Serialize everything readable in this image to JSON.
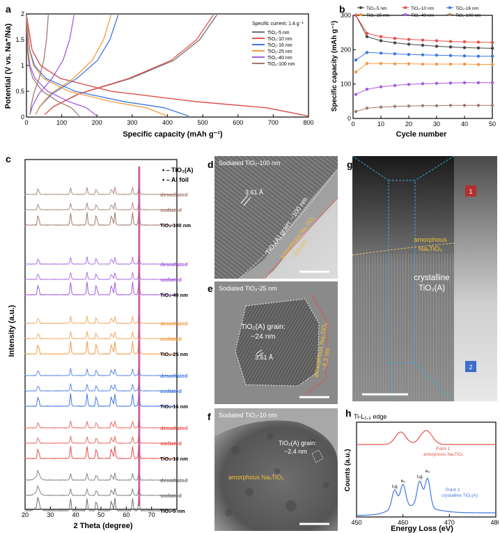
{
  "panel_a": {
    "label": "a",
    "legend_title": "Specific current: 1 A g⁻¹",
    "legend": [
      "TiO₂-5 nm",
      "TiO₂-10 nm",
      "TiO₂-16 nm",
      "TiO₂-25 nm",
      "TiO₂-40 nm",
      "TiO₂-100 nm"
    ],
    "colors": [
      "#6e6e6e",
      "#e8504b",
      "#3f76e4",
      "#f29a3f",
      "#a25be0",
      "#a07a70"
    ]
  },
  "panel_b": {
    "label": "b",
    "legend": [
      "TiO₂-5 nm",
      "TiO₂-10 nm",
      "TiO₂-16 nm",
      "TiO₂-25 nm",
      "TiO₂-40 nm",
      "TiO₂-100 nm"
    ]
  },
  "panel_c": {
    "label": "c",
    "legend": [
      "• – TiO₂(A)",
      "• – Al foil"
    ],
    "group_labels": [
      [
        "desodiated",
        "sodiated",
        "TiO₂-100 nm"
      ],
      [
        "desodiated",
        "sodiated",
        "TiO₂-40 nm"
      ],
      [
        "desodiated",
        "sodiated",
        "TiO₂-25 nm"
      ],
      [
        "desodiated",
        "sodiated",
        "TiO₂-16 nm"
      ],
      [
        "desodiated",
        "sodiated",
        "TiO₂-10 nm"
      ],
      [
        "desodiated",
        "sodiated",
        "TiO₂-5 nm"
      ]
    ]
  },
  "panel_d": {
    "label": "d",
    "title": "Sodiated TiO₂-100 nm",
    "spacing": "3.61 Å",
    "grain": "TiO₂(A) grain: ~100 nm",
    "amorphous": "amorphous NaₓTiO₂",
    "amorphous_size": "~3.0 nm"
  },
  "panel_e": {
    "label": "e",
    "title": "Sodiated TiO₂-25 nm",
    "grain_line1": "TiO₂(A) grain:",
    "grain_line2": "~24 nm",
    "spacing": "3.61 Å",
    "amorphous": "amorphous NaₓTiO₂",
    "amorphous_size": "~4.3 nm"
  },
  "panel_f": {
    "label": "f",
    "title": "Sodiated TiO₂-10 nm",
    "grain_line1": "TiO₂(A) grain:",
    "grain_line2": "~2.4 nm",
    "amorphous": "amorphous NaₓTiO₂"
  },
  "panel_g": {
    "label": "g",
    "amorphous_line1": "amorphous",
    "amorphous_line2": "NaₓTiO₂",
    "crystalline_line1": "crystalline",
    "crystalline_line2": "TiO₂(A)",
    "point1": "1",
    "point2": "2"
  },
  "panel_h": {
    "label": "h",
    "edge": "Ti-L₂,₃ edge",
    "point1_line1": "Point 1",
    "point1_line2": "amorphous NaₓTiO₂",
    "point2_line1": "Point 2",
    "point2_line2": "crystalline TiO₂(A)"
  },
  "chart_data": [
    {
      "type": "line",
      "panel": "a",
      "xlabel": "Specific capacity (mAh g⁻¹)",
      "ylabel": "Potential (V vs. Na⁺/Na)",
      "xlim": [
        0,
        800
      ],
      "ylim": [
        0,
        2
      ],
      "xticks": [
        0,
        100,
        200,
        300,
        400,
        500,
        600,
        700,
        800
      ],
      "yticks": [
        0,
        0.5,
        1,
        1.5,
        2
      ],
      "series": [
        {
          "name": "TiO₂-5 nm",
          "color": "#6e6e6e",
          "discharge_end": 800,
          "charge_end": 540
        },
        {
          "name": "TiO₂-10 nm",
          "color": "#e8504b",
          "discharge_end": 800,
          "charge_end": 530
        },
        {
          "name": "TiO₂-16 nm",
          "color": "#3f76e4",
          "discharge_end": 460,
          "charge_end": 260
        },
        {
          "name": "TiO₂-25 nm",
          "color": "#f29a3f",
          "discharge_end": 400,
          "charge_end": 240
        },
        {
          "name": "TiO₂-40 nm",
          "color": "#a25be0",
          "discharge_end": 200,
          "charge_end": 135
        },
        {
          "name": "TiO₂-100 nm",
          "color": "#a07a70",
          "discharge_end": 150,
          "charge_end": 62
        }
      ]
    },
    {
      "type": "scatter",
      "panel": "b",
      "xlabel": "Cycle number",
      "ylabel": "Specific capacity (mAh g⁻¹)",
      "xlim": [
        0,
        50
      ],
      "ylim": [
        0,
        300
      ],
      "xticks": [
        0,
        10,
        20,
        30,
        40,
        50
      ],
      "yticks": [
        0,
        100,
        200,
        300
      ],
      "x": [
        1,
        5,
        10,
        15,
        20,
        25,
        30,
        35,
        40,
        45,
        50
      ],
      "series": [
        {
          "name": "TiO₂-5 nm",
          "color": "#444444",
          "values": [
            300,
            238,
            226,
            220,
            216,
            213,
            210,
            208,
            206,
            205,
            204
          ]
        },
        {
          "name": "TiO₂-10 nm",
          "color": "#e8504b",
          "values": [
            300,
            248,
            238,
            233,
            230,
            228,
            226,
            224,
            223,
            222,
            221
          ]
        },
        {
          "name": "TiO₂-16 nm",
          "color": "#3f76e4",
          "values": [
            170,
            192,
            190,
            188,
            186,
            185,
            184,
            183,
            182,
            181,
            181
          ]
        },
        {
          "name": "TiO₂-25 nm",
          "color": "#f29a3f",
          "values": [
            135,
            160,
            160,
            159,
            159,
            158,
            158,
            158,
            158,
            157,
            157
          ]
        },
        {
          "name": "TiO₂-40 nm",
          "color": "#a25be0",
          "values": [
            70,
            85,
            92,
            96,
            99,
            101,
            102,
            103,
            104,
            104,
            104
          ]
        },
        {
          "name": "TiO₂-100 nm",
          "color": "#a07a70",
          "values": [
            20,
            30,
            33,
            35,
            36,
            37,
            37,
            38,
            38,
            38,
            38
          ]
        }
      ]
    },
    {
      "type": "line",
      "panel": "c",
      "xlabel": "2 Theta (degree)",
      "ylabel": "Intensity (a.u.)",
      "xlim": [
        20,
        80
      ],
      "xticks": [
        20,
        30,
        40,
        50,
        60,
        70
      ],
      "peaks_TiO2A": [
        25.2,
        38.0,
        44.5,
        48.2,
        54.2,
        55.5,
        62.5,
        65.0
      ],
      "peaks_Al": [
        38.5,
        44.7,
        65.1
      ]
    },
    {
      "type": "line",
      "panel": "h",
      "xlabel": "Energy Loss (eV)",
      "ylabel": "Counts (a.u.)",
      "xlim": [
        450,
        480
      ],
      "xticks": [
        450,
        460,
        470,
        480
      ],
      "peak_labels": [
        "t₂g",
        "e₉",
        "t₂g",
        "e₉"
      ],
      "series": [
        {
          "name": "Point 1",
          "color": "#e8504b",
          "peaks": [
            459.5,
            465.0
          ]
        },
        {
          "name": "Point 2",
          "color": "#3f76e4",
          "peaks": [
            458.2,
            460.0,
            463.6,
            465.3
          ]
        }
      ]
    }
  ]
}
